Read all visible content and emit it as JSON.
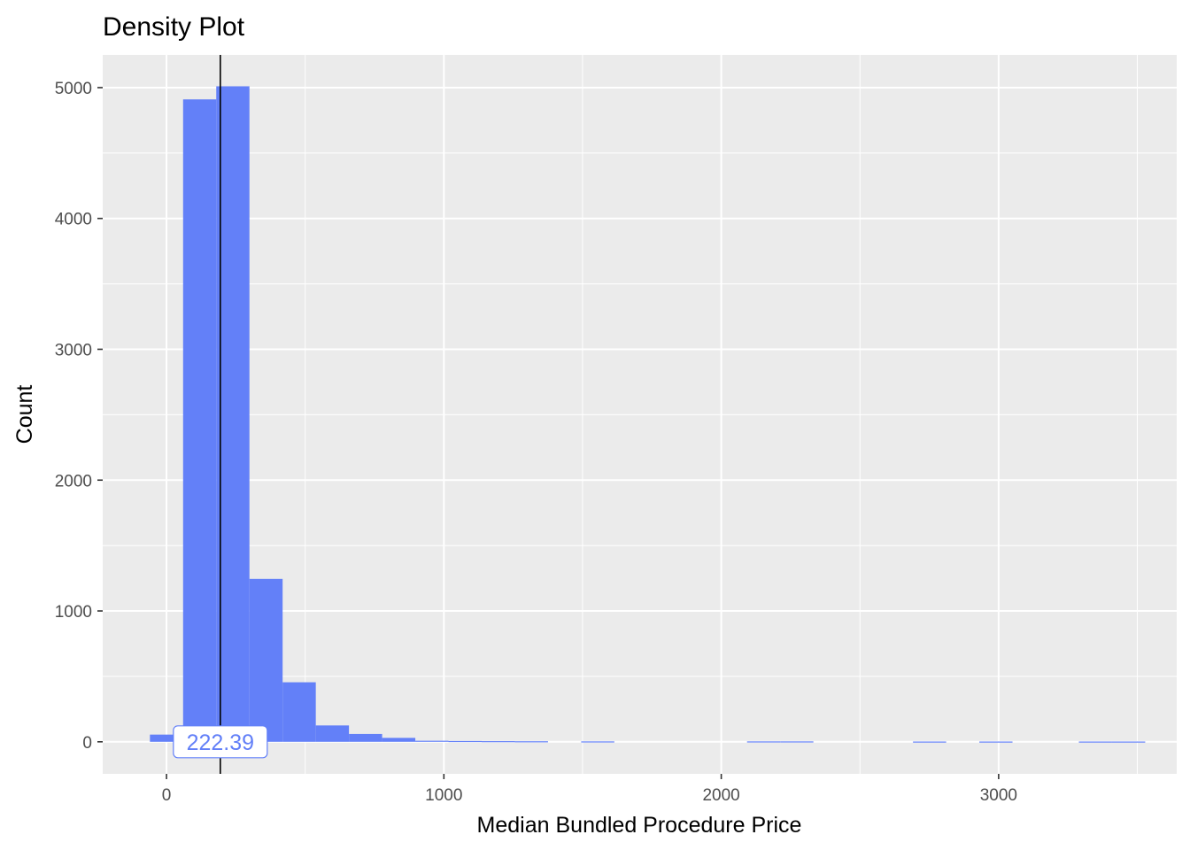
{
  "chart_data": {
    "type": "histogram",
    "title": "Density Plot",
    "xlabel": "Median Bundled Procedure Price",
    "ylabel": "Count",
    "xlim": [
      -230,
      3642
    ],
    "ylim": [
      -245,
      5250
    ],
    "x_ticks": [
      0,
      1000,
      2000,
      3000
    ],
    "x_tick_labels": [
      "0",
      "1000",
      "2000",
      "3000"
    ],
    "x_minor": [
      -500,
      500,
      1500,
      2500,
      3500
    ],
    "y_ticks": [
      0,
      1000,
      2000,
      3000,
      4000,
      5000
    ],
    "y_tick_labels": [
      "0",
      "1000",
      "2000",
      "3000",
      "4000",
      "5000"
    ],
    "y_minor": [
      500,
      1500,
      2500,
      3500,
      4500
    ],
    "bin_width": 119.6,
    "bars": [
      {
        "x0": -59.8,
        "x1": 59.8,
        "count": 55
      },
      {
        "x0": 59.8,
        "x1": 179.4,
        "count": 4910
      },
      {
        "x0": 179.4,
        "x1": 299.0,
        "count": 5010
      },
      {
        "x0": 299.0,
        "x1": 418.6,
        "count": 1245
      },
      {
        "x0": 418.6,
        "x1": 538.2,
        "count": 455
      },
      {
        "x0": 538.2,
        "x1": 657.8,
        "count": 125
      },
      {
        "x0": 657.8,
        "x1": 777.4,
        "count": 60
      },
      {
        "x0": 777.4,
        "x1": 897.0,
        "count": 30
      },
      {
        "x0": 897.0,
        "x1": 1016.6,
        "count": 8
      },
      {
        "x0": 1016.6,
        "x1": 1136.2,
        "count": 6
      },
      {
        "x0": 1136.2,
        "x1": 1255.8,
        "count": 5
      },
      {
        "x0": 1255.8,
        "x1": 1375.4,
        "count": 4
      },
      {
        "x0": 1494.9,
        "x1": 1614.5,
        "count": 3
      },
      {
        "x0": 2093.0,
        "x1": 2212.6,
        "count": 3
      },
      {
        "x0": 2212.6,
        "x1": 2332.2,
        "count": 3
      },
      {
        "x0": 2691.2,
        "x1": 2810.8,
        "count": 2
      },
      {
        "x0": 2930.4,
        "x1": 3050.0,
        "count": 2
      },
      {
        "x0": 3289.2,
        "x1": 3408.8,
        "count": 2
      },
      {
        "x0": 3408.8,
        "x1": 3528.4,
        "count": 2
      }
    ],
    "vline": {
      "x": 194
    },
    "annotation": {
      "label": "222.39",
      "x": 194,
      "y": 0
    },
    "bar_color": "#6380F8",
    "panel_color": "#EBEBEB",
    "grid": true
  }
}
